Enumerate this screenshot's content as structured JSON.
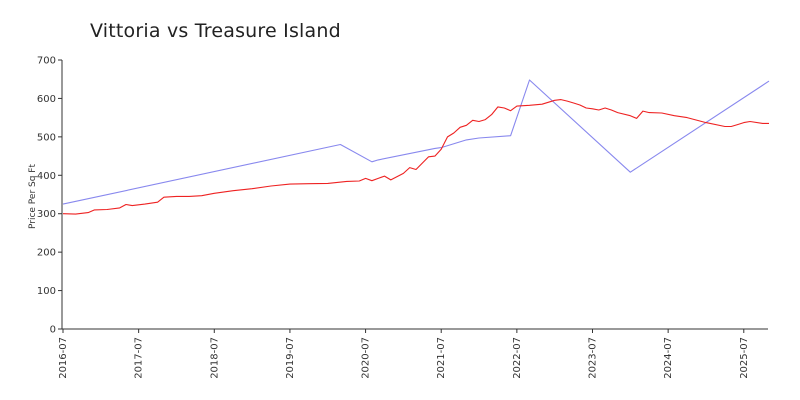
{
  "chart_data": {
    "type": "line",
    "title": "Vittoria vs Treasure Island",
    "xlabel": "",
    "ylabel": "Price Per Sq Ft",
    "ylim": [
      0,
      700
    ],
    "xlim": [
      "2016-07",
      "2025-11"
    ],
    "yticks": [
      0,
      100,
      200,
      300,
      400,
      500,
      600,
      700
    ],
    "xticks": [
      "2016-07",
      "2017-07",
      "2018-07",
      "2019-07",
      "2020-07",
      "2021-07",
      "2022-07",
      "2023-07",
      "2024-07",
      "2025-07"
    ],
    "grid": false,
    "legend": "none",
    "series": [
      {
        "color": "#8888ee",
        "points": [
          [
            "2016-07",
            325
          ],
          [
            "2020-03",
            480
          ],
          [
            "2020-08",
            435
          ],
          [
            "2020-09",
            440
          ],
          [
            "2021-06",
            470
          ],
          [
            "2021-07",
            472
          ],
          [
            "2021-11",
            492
          ],
          [
            "2022-01",
            497
          ],
          [
            "2022-06",
            503
          ],
          [
            "2022-09",
            648
          ],
          [
            "2024-01",
            408
          ],
          [
            "2025-11",
            645
          ]
        ]
      },
      {
        "color": "#ee2222",
        "points": [
          [
            "2016-07",
            300
          ],
          [
            "2016-09",
            299
          ],
          [
            "2016-11",
            303
          ],
          [
            "2016-12",
            310
          ],
          [
            "2017-02",
            311
          ],
          [
            "2017-04",
            315
          ],
          [
            "2017-05",
            324
          ],
          [
            "2017-06",
            321
          ],
          [
            "2017-08",
            325
          ],
          [
            "2017-10",
            330
          ],
          [
            "2017-11",
            343
          ],
          [
            "2018-01",
            345
          ],
          [
            "2018-03",
            345
          ],
          [
            "2018-05",
            347
          ],
          [
            "2018-07",
            353
          ],
          [
            "2018-10",
            360
          ],
          [
            "2019-01",
            365
          ],
          [
            "2019-04",
            372
          ],
          [
            "2019-07",
            377
          ],
          [
            "2019-10",
            378
          ],
          [
            "2020-01",
            379
          ],
          [
            "2020-04",
            384
          ],
          [
            "2020-06",
            385
          ],
          [
            "2020-07",
            392
          ],
          [
            "2020-08",
            386
          ],
          [
            "2020-09",
            392
          ],
          [
            "2020-10",
            398
          ],
          [
            "2020-11",
            388
          ],
          [
            "2021-01",
            405
          ],
          [
            "2021-02",
            420
          ],
          [
            "2021-03",
            415
          ],
          [
            "2021-05",
            448
          ],
          [
            "2021-06",
            450
          ],
          [
            "2021-07",
            468
          ],
          [
            "2021-08",
            500
          ],
          [
            "2021-09",
            510
          ],
          [
            "2021-10",
            525
          ],
          [
            "2021-11",
            530
          ],
          [
            "2021-12",
            543
          ],
          [
            "2022-01",
            540
          ],
          [
            "2022-02",
            545
          ],
          [
            "2022-03",
            558
          ],
          [
            "2022-04",
            578
          ],
          [
            "2022-05",
            575
          ],
          [
            "2022-06",
            568
          ],
          [
            "2022-07",
            580
          ],
          [
            "2022-09",
            582
          ],
          [
            "2022-11",
            585
          ],
          [
            "2023-01",
            595
          ],
          [
            "2023-02",
            597
          ],
          [
            "2023-03",
            593
          ],
          [
            "2023-04",
            588
          ],
          [
            "2023-05",
            583
          ],
          [
            "2023-06",
            575
          ],
          [
            "2023-07",
            573
          ],
          [
            "2023-08",
            570
          ],
          [
            "2023-09",
            575
          ],
          [
            "2023-10",
            570
          ],
          [
            "2023-11",
            563
          ],
          [
            "2024-01",
            555
          ],
          [
            "2024-02",
            548
          ],
          [
            "2024-03",
            567
          ],
          [
            "2024-04",
            563
          ],
          [
            "2024-06",
            562
          ],
          [
            "2024-08",
            555
          ],
          [
            "2024-10",
            550
          ],
          [
            "2025-01",
            537
          ],
          [
            "2025-04",
            527
          ],
          [
            "2025-05",
            527
          ],
          [
            "2025-06",
            532
          ],
          [
            "2025-07",
            537
          ],
          [
            "2025-08",
            540
          ],
          [
            "2025-10",
            535
          ],
          [
            "2025-11",
            535
          ]
        ]
      }
    ]
  }
}
